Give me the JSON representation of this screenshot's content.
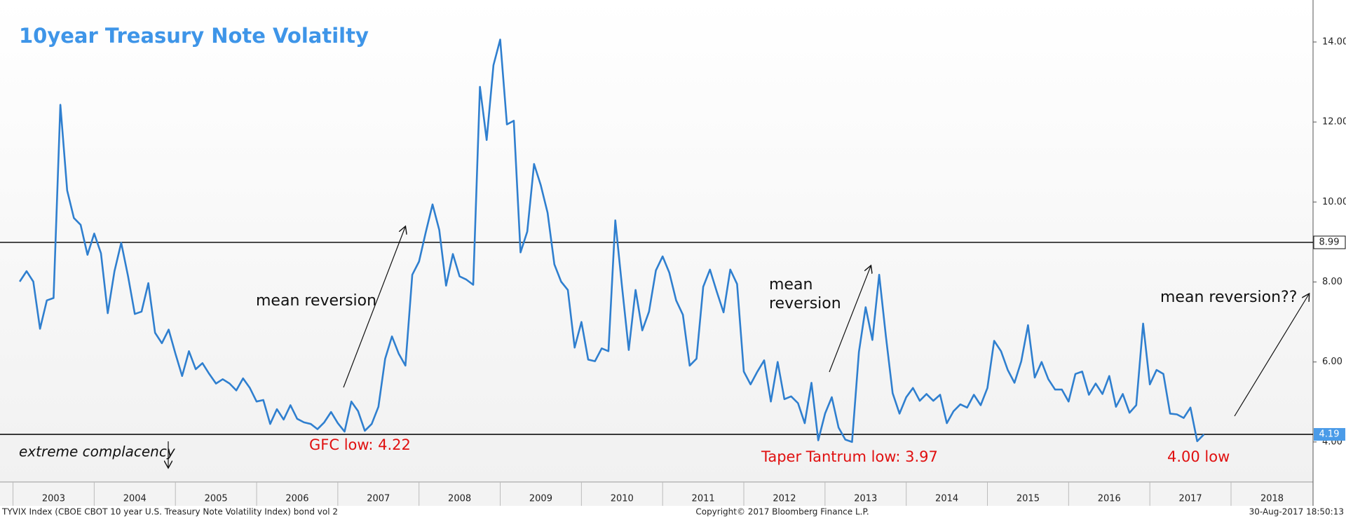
{
  "chart_data": {
    "type": "line",
    "title": "10year Treasury Note Volatilty",
    "x": [
      2003.083,
      2003.167,
      2003.25,
      2003.333,
      2003.417,
      2003.5,
      2003.583,
      2003.667,
      2003.75,
      2003.833,
      2003.917,
      2004,
      2004.083,
      2004.167,
      2004.25,
      2004.333,
      2004.417,
      2004.5,
      2004.583,
      2004.667,
      2004.75,
      2004.833,
      2004.917,
      2005,
      2005.083,
      2005.167,
      2005.25,
      2005.333,
      2005.417,
      2005.5,
      2005.583,
      2005.667,
      2005.75,
      2005.833,
      2005.917,
      2006,
      2006.083,
      2006.167,
      2006.25,
      2006.333,
      2006.417,
      2006.5,
      2006.583,
      2006.667,
      2006.75,
      2006.833,
      2006.917,
      2007,
      2007.083,
      2007.167,
      2007.25,
      2007.333,
      2007.417,
      2007.5,
      2007.583,
      2007.667,
      2007.75,
      2007.833,
      2007.917,
      2008,
      2008.083,
      2008.167,
      2008.25,
      2008.333,
      2008.417,
      2008.5,
      2008.583,
      2008.667,
      2008.75,
      2008.833,
      2008.917,
      2009,
      2009.083,
      2009.167,
      2009.25,
      2009.333,
      2009.417,
      2009.5,
      2009.583,
      2009.667,
      2009.75,
      2009.833,
      2009.917,
      2010,
      2010.083,
      2010.167,
      2010.25,
      2010.333,
      2010.417,
      2010.5,
      2010.583,
      2010.667,
      2010.75,
      2010.833,
      2010.917,
      2011,
      2011.083,
      2011.167,
      2011.25,
      2011.333,
      2011.417,
      2011.5,
      2011.583,
      2011.667,
      2011.75,
      2011.833,
      2011.917,
      2012,
      2012.083,
      2012.167,
      2012.25,
      2012.333,
      2012.417,
      2012.5,
      2012.583,
      2012.667,
      2012.75,
      2012.833,
      2012.917,
      2013,
      2013.083,
      2013.167,
      2013.25,
      2013.333,
      2013.417,
      2013.5,
      2013.583,
      2013.667,
      2013.75,
      2013.833,
      2013.917,
      2014,
      2014.083,
      2014.167,
      2014.25,
      2014.333,
      2014.417,
      2014.5,
      2014.583,
      2014.667,
      2014.75,
      2014.833,
      2014.917,
      2015,
      2015.083,
      2015.167,
      2015.25,
      2015.333,
      2015.417,
      2015.5,
      2015.583,
      2015.667,
      2015.75,
      2015.833,
      2015.917,
      2016,
      2016.083,
      2016.167,
      2016.25,
      2016.333,
      2016.417,
      2016.5,
      2016.583,
      2016.667,
      2016.75,
      2016.833,
      2016.917,
      2017,
      2017.083,
      2017.167,
      2017.25,
      2017.333,
      2017.417,
      2017.5,
      2017.583,
      2017.667
    ],
    "values": [
      8.01,
      8.27,
      8.01,
      6.83,
      7.54,
      7.6,
      12.43,
      10.29,
      9.6,
      9.43,
      8.68,
      9.21,
      8.72,
      7.22,
      8.27,
      8.98,
      8.14,
      7.2,
      7.26,
      7.97,
      6.73,
      6.47,
      6.81,
      6.21,
      5.65,
      6.27,
      5.82,
      5.97,
      5.7,
      5.46,
      5.57,
      5.46,
      5.29,
      5.59,
      5.35,
      5.01,
      5.05,
      4.45,
      4.82,
      4.56,
      4.92,
      4.58,
      4.49,
      4.45,
      4.32,
      4.49,
      4.75,
      4.47,
      4.26,
      5.01,
      4.77,
      4.28,
      4.45,
      4.88,
      6.08,
      6.64,
      6.21,
      5.91,
      8.18,
      8.51,
      9.24,
      9.94,
      9.3,
      7.91,
      8.7,
      8.14,
      8.06,
      7.93,
      12.88,
      11.55,
      13.42,
      14.06,
      11.94,
      12.03,
      8.74,
      9.26,
      10.95,
      10.42,
      9.73,
      8.44,
      8.01,
      7.8,
      6.36,
      7.0,
      6.06,
      6.02,
      6.34,
      6.27,
      9.54,
      7.88,
      6.3,
      7.8,
      6.79,
      7.26,
      8.29,
      8.64,
      8.23,
      7.54,
      7.18,
      5.91,
      6.08,
      7.88,
      8.31,
      7.76,
      7.24,
      8.31,
      7.95,
      5.76,
      5.44,
      5.76,
      6.04,
      5.01,
      6.0,
      5.07,
      5.14,
      4.97,
      4.47,
      5.48,
      4.04,
      4.71,
      5.12,
      4.36,
      4.06,
      4.0,
      6.25,
      7.37,
      6.55,
      8.18,
      6.64,
      5.22,
      4.71,
      5.12,
      5.35,
      5.03,
      5.2,
      5.03,
      5.18,
      4.47,
      4.77,
      4.94,
      4.86,
      5.18,
      4.92,
      5.35,
      6.53,
      6.27,
      5.8,
      5.48,
      6.02,
      6.92,
      5.61,
      6.0,
      5.57,
      5.31,
      5.31,
      5.01,
      5.7,
      5.76,
      5.18,
      5.46,
      5.2,
      5.65,
      4.88,
      5.2,
      4.73,
      4.92,
      6.96,
      5.44,
      5.8,
      5.7,
      4.71,
      4.69,
      4.6,
      4.86,
      4.02,
      4.19
    ],
    "color": "#2f7fcf",
    "xlim": [
      2002.84,
      2019.01
    ],
    "xticks": [
      2003,
      2004,
      2005,
      2006,
      2007,
      2008,
      2009,
      2010,
      2011,
      2012,
      2013,
      2014,
      2015,
      2016,
      2017,
      2018
    ],
    "ylim": [
      3.0,
      15.05
    ],
    "yticks": [
      {
        "value": 4,
        "label": "4.00"
      },
      {
        "value": 6,
        "label": "6.00"
      },
      {
        "value": 8,
        "label": "8.00"
      },
      {
        "value": 10,
        "label": "10.00"
      },
      {
        "value": 12,
        "label": "12.00"
      },
      {
        "value": 14,
        "label": "14.00"
      }
    ],
    "reference_lines": [
      8.99,
      4.19
    ],
    "annotations": [
      "mean reversion",
      "mean",
      "reversion",
      "mean reversion??",
      "extreme complacency"
    ],
    "low_labels": [
      "GFC low: 4.22",
      "Taper Tantrum low: 3.97",
      "4.00 low"
    ],
    "footer": [
      "TYVIX Index (CBOE CBOT 10 year U.S. Treasury Note Volatility Index) bond vol 2",
      "Copyright© 2017 Bloomberg Finance L.P.",
      "30-Aug-2017 18:50:13"
    ]
  }
}
